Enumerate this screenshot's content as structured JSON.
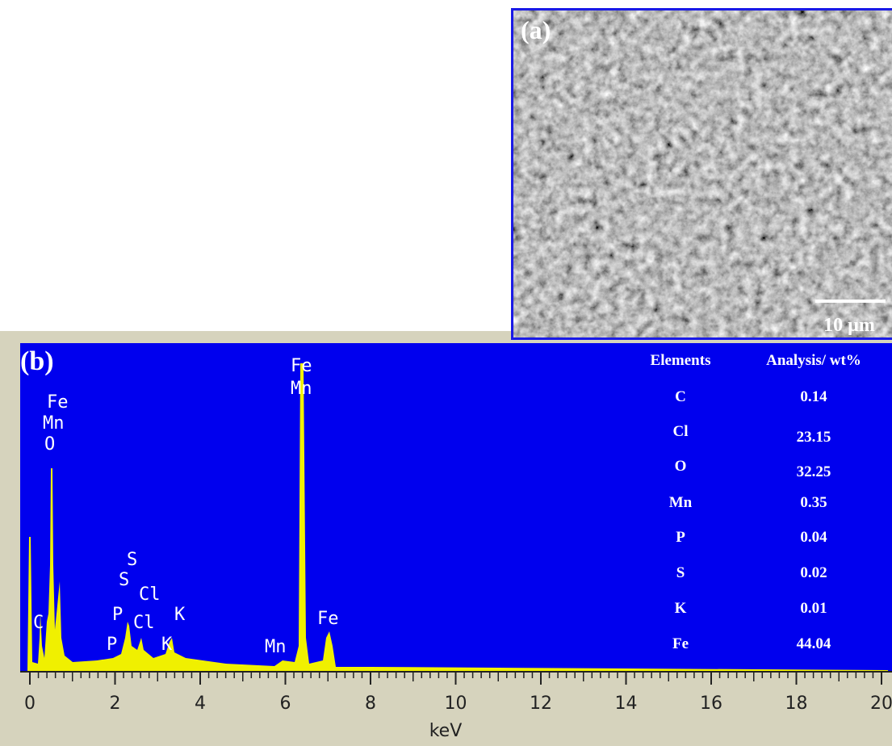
{
  "panel_a": {
    "label": "(a)",
    "scale_bar": "10 µm"
  },
  "panel_b": {
    "label": "(b)",
    "x_axis_label": "keV",
    "x_ticks": [
      0,
      2,
      4,
      6,
      8,
      10,
      12,
      14,
      16,
      18,
      20
    ],
    "peak_labels": [
      "Fe",
      "Mn",
      "O",
      "C",
      "S",
      "S",
      "Cl",
      "P",
      "Cl",
      "K",
      "P",
      "K",
      "Fe",
      "Mn",
      "Fe",
      "Mn"
    ],
    "table": {
      "header": [
        "Elements",
        "Analysis/ wt%"
      ],
      "rows": [
        [
          "C",
          "0.14"
        ],
        [
          "Cl",
          "23.15"
        ],
        [
          "O",
          "32.25"
        ],
        [
          "Mn",
          "0.35"
        ],
        [
          "P",
          "0.04"
        ],
        [
          "S",
          "0.02"
        ],
        [
          "K",
          "0.01"
        ],
        [
          "Fe",
          "44.04"
        ]
      ]
    }
  }
}
